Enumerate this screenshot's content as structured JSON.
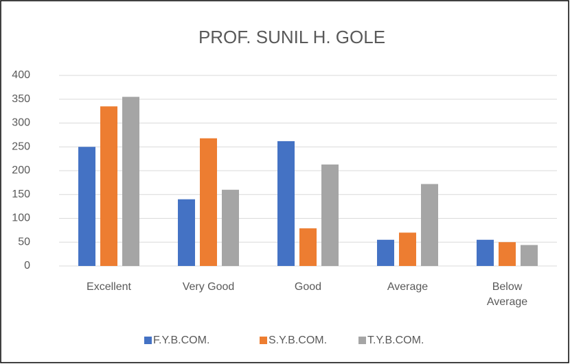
{
  "chart_data": {
    "type": "bar",
    "title": "PROF. SUNIL H. GOLE",
    "categories": [
      "Excellent",
      "Very Good",
      "Good",
      "Average",
      "Below Average"
    ],
    "series": [
      {
        "name": "F.Y.B.COM.",
        "color": "#4472c4",
        "values": [
          250,
          140,
          262,
          55,
          55
        ]
      },
      {
        "name": "S.Y.B.COM.",
        "color": "#ed7d31",
        "values": [
          335,
          268,
          79,
          70,
          50
        ]
      },
      {
        "name": "T.Y.B.COM.",
        "color": "#a5a5a5",
        "values": [
          355,
          160,
          213,
          172,
          44
        ]
      }
    ],
    "ylim": [
      0,
      400
    ],
    "yticks": [
      0,
      50,
      100,
      150,
      200,
      250,
      300,
      350,
      400
    ],
    "grid": true,
    "legend": "bottom"
  }
}
